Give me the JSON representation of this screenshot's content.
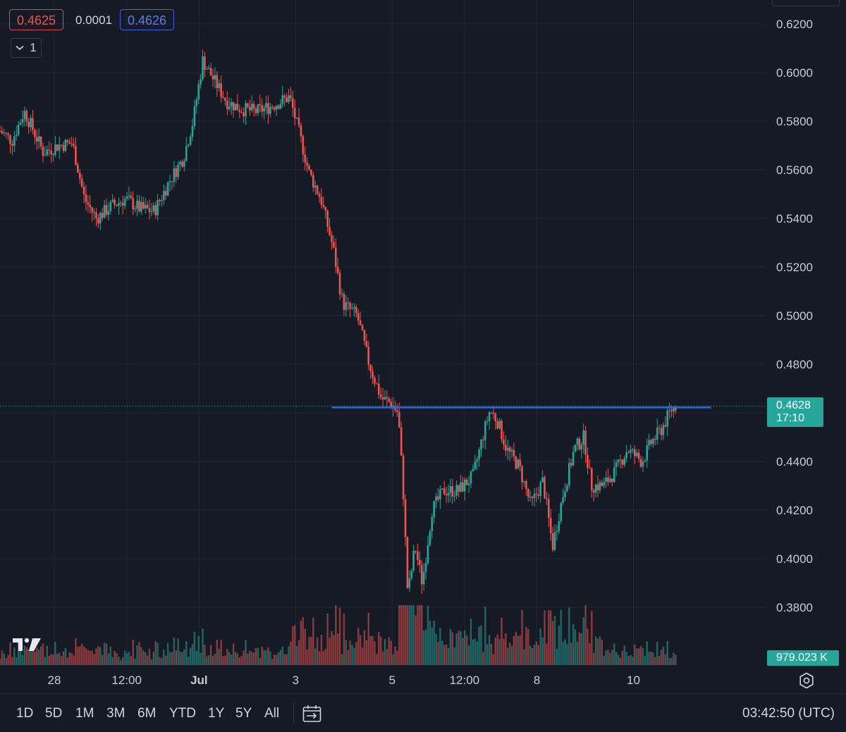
{
  "quote": {
    "bid": "0.4625",
    "spread": "0.0001",
    "ask": "0.4626"
  },
  "collapse_button": {
    "label": "1"
  },
  "last_price": {
    "value": "0.4628",
    "countdown": "17:10"
  },
  "volume": {
    "value": "979.023 K"
  },
  "time_axis": [
    {
      "label": "28"
    },
    {
      "label": "12:00"
    },
    {
      "label": "Jul"
    },
    {
      "label": "3"
    },
    {
      "label": "5"
    },
    {
      "label": "12:00"
    },
    {
      "label": "8"
    },
    {
      "label": "10"
    }
  ],
  "bottom_bar": {
    "ranges": [
      "1D",
      "5D",
      "1M",
      "3M",
      "6M",
      "YTD",
      "1Y",
      "5Y",
      "All"
    ],
    "clock": "03:42:50 (UTC)"
  },
  "icons": {
    "logo": "tradingview-logo-icon",
    "settings": "gear-icon",
    "date_range": "calendar-range-icon",
    "collapse": "chevron-down-icon"
  },
  "colors": {
    "background": "#161a25",
    "up": "#26a69a",
    "down": "#ef5350",
    "horizontal_line": "#2962ff",
    "grid": "#232733"
  },
  "chart_data": {
    "type": "candlestick",
    "y_axis_ticks": [
      "0.6200",
      "0.6000",
      "0.5800",
      "0.5600",
      "0.5400",
      "0.5200",
      "0.5000",
      "0.4800",
      "0.4600",
      "0.4400",
      "0.4200",
      "0.4000",
      "0.3800"
    ],
    "ylim": [
      0.3625,
      0.6245
    ],
    "grid": true,
    "horizontal_line": {
      "price": 0.4622
    },
    "last_price": 0.4628,
    "close_path": [
      [
        0,
        0.576
      ],
      [
        0.5,
        0.572
      ],
      [
        1.0,
        0.584
      ],
      [
        1.3,
        0.578
      ],
      [
        1.8,
        0.567
      ],
      [
        2.4,
        0.57
      ],
      [
        3.0,
        0.571
      ],
      [
        3.5,
        0.548
      ],
      [
        4.0,
        0.54
      ],
      [
        4.6,
        0.545
      ],
      [
        5.2,
        0.548
      ],
      [
        5.8,
        0.544
      ],
      [
        6.4,
        0.543
      ],
      [
        7.0,
        0.555
      ],
      [
        7.6,
        0.565
      ],
      [
        8.0,
        0.58
      ],
      [
        8.4,
        0.605
      ],
      [
        8.8,
        0.598
      ],
      [
        9.4,
        0.588
      ],
      [
        10.0,
        0.585
      ],
      [
        10.6,
        0.584
      ],
      [
        11.2,
        0.586
      ],
      [
        12.0,
        0.59
      ],
      [
        12.4,
        0.575
      ],
      [
        12.8,
        0.559
      ],
      [
        13.3,
        0.548
      ],
      [
        13.8,
        0.528
      ],
      [
        14.2,
        0.505
      ],
      [
        14.8,
        0.5
      ],
      [
        15.3,
        0.48
      ],
      [
        15.8,
        0.466
      ],
      [
        16.2,
        0.464
      ],
      [
        16.5,
        0.46
      ],
      [
        16.7,
        0.43
      ],
      [
        16.9,
        0.385
      ],
      [
        17.2,
        0.405
      ],
      [
        17.5,
        0.39
      ],
      [
        17.9,
        0.42
      ],
      [
        18.4,
        0.428
      ],
      [
        19.0,
        0.428
      ],
      [
        19.6,
        0.434
      ],
      [
        20.0,
        0.45
      ],
      [
        20.3,
        0.461
      ],
      [
        20.6,
        0.457
      ],
      [
        21.0,
        0.445
      ],
      [
        21.5,
        0.438
      ],
      [
        22.0,
        0.422
      ],
      [
        22.5,
        0.432
      ],
      [
        22.9,
        0.405
      ],
      [
        23.3,
        0.425
      ],
      [
        23.8,
        0.445
      ],
      [
        24.2,
        0.45
      ],
      [
        24.5,
        0.43
      ],
      [
        25.0,
        0.43
      ],
      [
        25.5,
        0.436
      ],
      [
        26.0,
        0.445
      ],
      [
        26.6,
        0.44
      ],
      [
        27.0,
        0.448
      ],
      [
        27.4,
        0.453
      ],
      [
        27.8,
        0.461
      ],
      [
        28.0,
        0.463
      ]
    ],
    "x_ticks": [
      {
        "x": 2.25,
        "label": "28"
      },
      {
        "x": 5.25,
        "label": "12:00"
      },
      {
        "x": 8.25,
        "label": "Jul"
      },
      {
        "x": 12.25,
        "label": "3"
      },
      {
        "x": 16.25,
        "label": "5"
      },
      {
        "x": 19.25,
        "label": "12:00"
      },
      {
        "x": 22.25,
        "label": "8"
      },
      {
        "x": 26.25,
        "label": "10"
      }
    ],
    "xlim": [
      0,
      31.7
    ],
    "horizontal_line_x": [
      13.75,
      28.0
    ]
  }
}
